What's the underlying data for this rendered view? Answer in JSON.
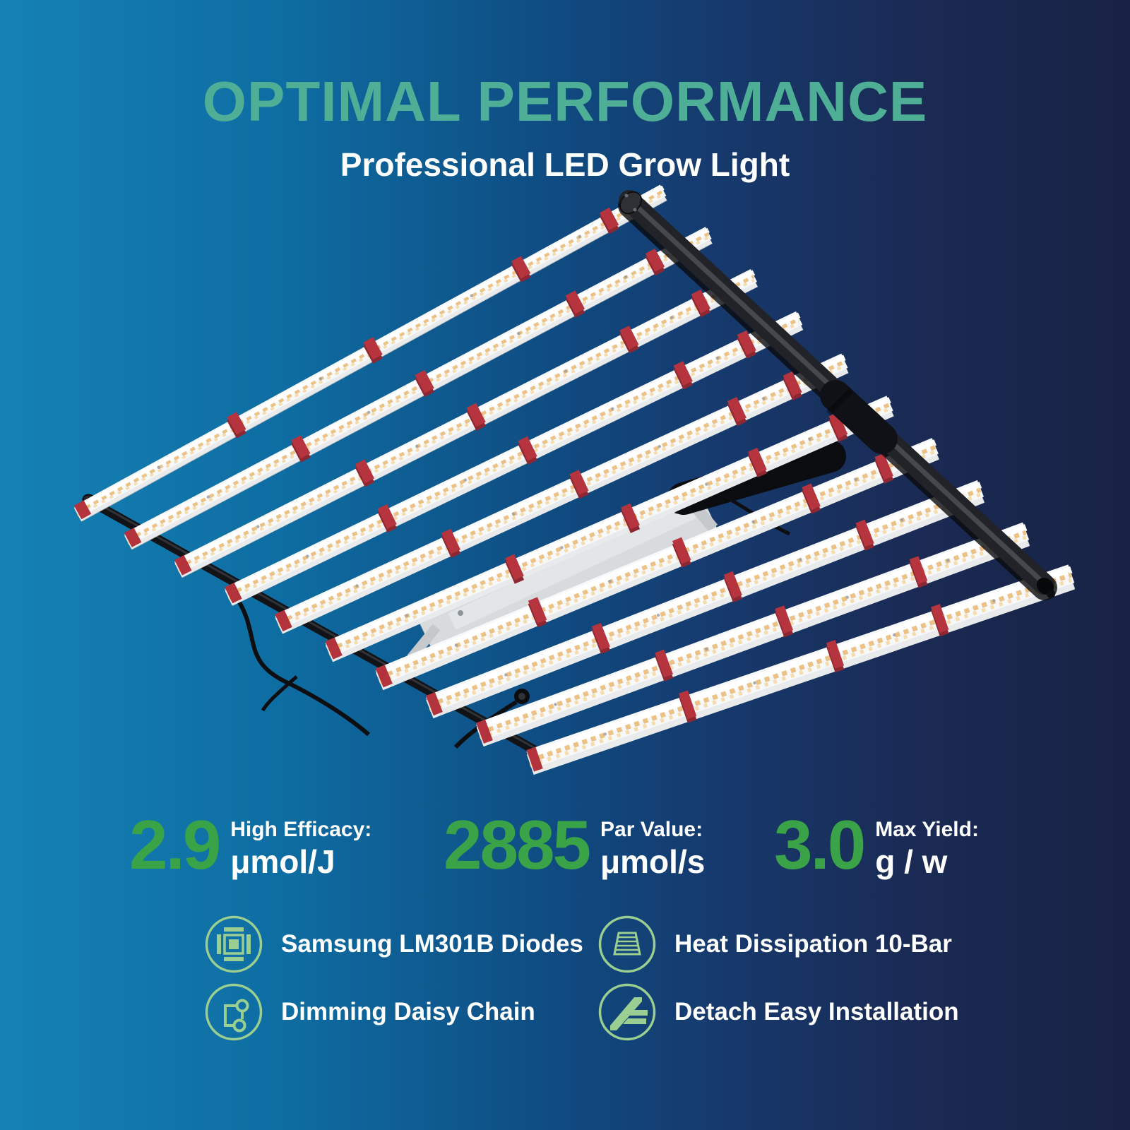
{
  "header": {
    "title": "OPTIMAL PERFORMANCE",
    "subtitle": "Professional LED Grow Light"
  },
  "stats": [
    {
      "value": "2.9",
      "label": "High Efficacy:",
      "unit": "μmol/J"
    },
    {
      "value": "2885",
      "label": "Par Value:",
      "unit": "μmol/s"
    },
    {
      "value": "3.0",
      "label": "Max Yield:",
      "unit": "g / w"
    }
  ],
  "features": [
    {
      "icon": "chip-icon",
      "label": "Samsung LM301B Diodes"
    },
    {
      "icon": "heatsink-icon",
      "label": "Heat Dissipation 10-Bar"
    },
    {
      "icon": "daisy-chain-icon",
      "label": "Dimming Daisy Chain"
    },
    {
      "icon": "detach-icon",
      "label": "Detach Easy Installation"
    }
  ],
  "product": {
    "name": "10-bar foldable LED grow light fixture",
    "bar_count": 10
  },
  "colors": {
    "title_teal": "#4FAE96",
    "stat_green": "#3AA347",
    "icon_green": "#9BCE91",
    "clip_red": "#B5343D",
    "background_left": "#1581B5",
    "background_right": "#182244"
  }
}
